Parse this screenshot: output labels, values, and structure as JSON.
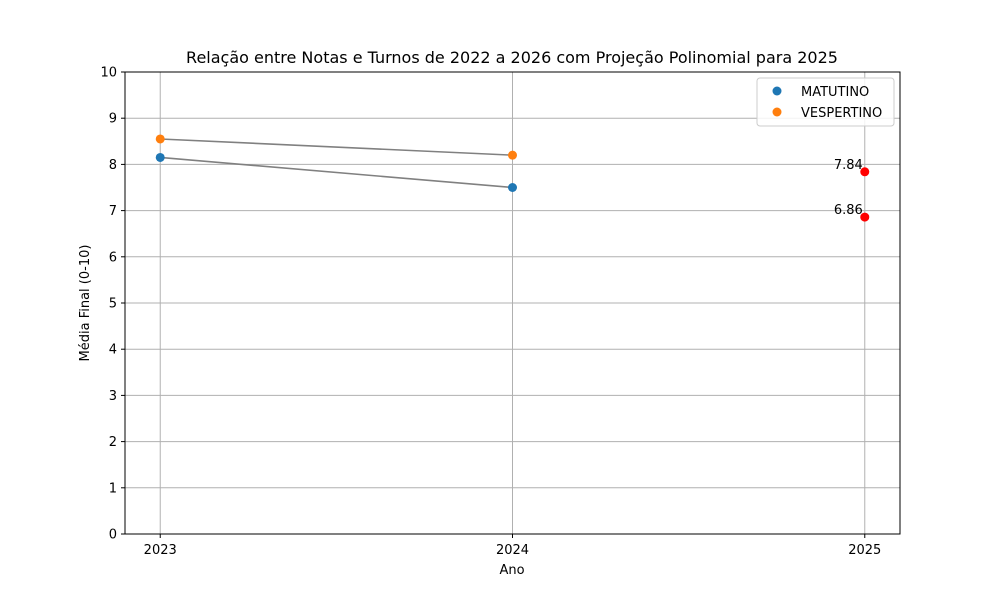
{
  "chart_data": {
    "type": "scatter",
    "title": "Relação entre Notas e Turnos de 2022 a 2026 com Projeção Polinomial para 2025",
    "xlabel": "Ano",
    "ylabel": "Média Final (0-10)",
    "x_ticks": [
      2023,
      2024,
      2025
    ],
    "xlim": [
      2022.9,
      2025.1
    ],
    "ylim": [
      0,
      10
    ],
    "y_ticks": [
      0,
      1,
      2,
      3,
      4,
      5,
      6,
      7,
      8,
      9,
      10
    ],
    "grid": true,
    "legend_position": "top-right",
    "series": [
      {
        "name": "MATUTINO",
        "color": "#1f77b4",
        "points": [
          {
            "x": 2023,
            "y": 8.15
          },
          {
            "x": 2024,
            "y": 7.5
          }
        ]
      },
      {
        "name": "VESPERTINO",
        "color": "#ff7f0e",
        "points": [
          {
            "x": 2023,
            "y": 8.55
          },
          {
            "x": 2024,
            "y": 8.2
          }
        ]
      }
    ],
    "projection": {
      "color": "#ff0000",
      "points": [
        {
          "x": 2025,
          "y": 7.84,
          "label": "7.84"
        },
        {
          "x": 2025,
          "y": 6.86,
          "label": "6.86"
        }
      ]
    },
    "connector_color": "#808080"
  }
}
